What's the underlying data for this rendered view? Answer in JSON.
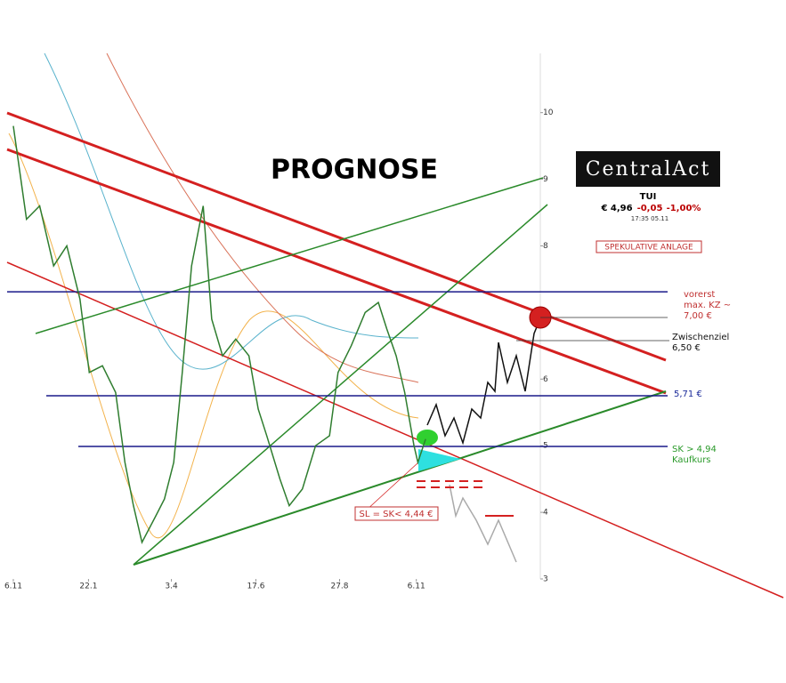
{
  "chart_data": {
    "type": "line",
    "title": "PROGNOSE",
    "logo": "CentralAct",
    "ticker": {
      "name": "TUI",
      "price": "€ 4,96",
      "change": "-0,05",
      "change_pct": "-1,00%",
      "time": "17:35  05.11"
    },
    "badge": "SPEKULATIVE ANLAGE",
    "x": [
      0,
      1.7,
      3.4,
      5.2,
      6.9,
      8.6,
      9.8,
      11.5,
      13.2,
      14.4,
      15.5,
      16.6,
      18.4,
      19.5,
      20.7,
      21.8,
      23,
      24.5,
      25.6,
      27,
      28.7,
      30.4,
      31.6,
      32.7,
      34.4,
      35.6,
      37.3,
      39,
      40.8,
      41.9,
      43.6,
      45.4,
      47.1,
      48.2,
      49.4,
      50.5,
      51.7,
      52.2,
      53.2
    ],
    "values": [
      9.8,
      8.4,
      8.6,
      7.7,
      8.0,
      7.2,
      6.1,
      6.2,
      5.8,
      4.75,
      4.1,
      3.55,
      3.95,
      4.2,
      4.75,
      6.1,
      7.7,
      8.6,
      6.9,
      6.35,
      6.6,
      6.35,
      5.55,
      5.15,
      4.5,
      4.1,
      4.35,
      5.0,
      5.15,
      6.1,
      6.5,
      7.0,
      7.15,
      6.75,
      6.35,
      5.8,
      5.0,
      4.75,
      5.1
    ],
    "color": "#2f7d2f",
    "xlim": [
      -0.8,
      68
    ],
    "ylim": [
      3,
      10.89
    ],
    "xticks": [
      {
        "value": 0,
        "label": "6.11"
      },
      {
        "value": 9.7,
        "label": "22.1"
      },
      {
        "value": 20.4,
        "label": "3.4"
      },
      {
        "value": 31.3,
        "label": "17.6"
      },
      {
        "value": 42.1,
        "label": "27.8"
      },
      {
        "value": 52,
        "label": "6.11"
      }
    ],
    "yticks": [
      3,
      4,
      5,
      6,
      8,
      9,
      10
    ],
    "hlines": [
      7.31,
      5.75,
      4.99
    ],
    "annotations": {
      "resistance": [
        "vorerst",
        "max. KZ ~",
        "7,00 €"
      ],
      "target": [
        "Zwischenziel",
        "6,50 €"
      ],
      "support": "5,71 €",
      "entry": [
        "SK > 4,94",
        "Kaufkurs"
      ],
      "stop": "SL = SK< 4,44 €"
    }
  }
}
